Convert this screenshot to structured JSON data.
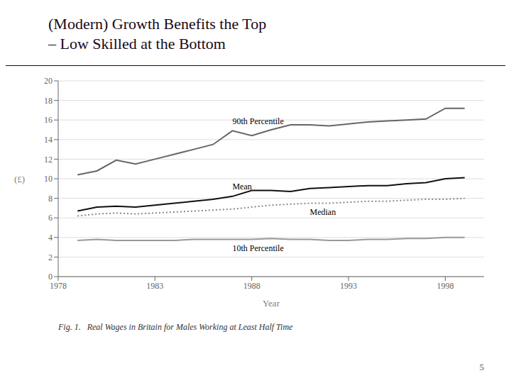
{
  "chart_data": {
    "type": "line",
    "title": "(Modern) Growth Benefits the Top",
    "subtitle": "– Low Skilled at the Bottom",
    "annotations": [
      "Fig. 1.   Real Wages in Britain for Males Working at Least Half Time",
      "5"
    ],
    "xlabel": "Year",
    "ylabel": "(£)",
    "x": [
      1979,
      1980,
      1981,
      1982,
      1983,
      1984,
      1985,
      1986,
      1987,
      1988,
      1989,
      1990,
      1991,
      1992,
      1993,
      1994,
      1995,
      1996,
      1997,
      1998,
      1999
    ],
    "series": [
      {
        "name": "90th Percentile",
        "color": "#666666",
        "line_style": "solid",
        "values": [
          10.4,
          10.8,
          11.9,
          11.5,
          12.0,
          12.5,
          13.0,
          13.5,
          14.9,
          14.4,
          15.0,
          15.5,
          15.5,
          15.4,
          15.6,
          15.8,
          15.9,
          16.0,
          16.1,
          17.2,
          17.2
        ]
      },
      {
        "name": "Mean",
        "color": "#111111",
        "line_style": "solid",
        "values": [
          6.7,
          7.1,
          7.2,
          7.1,
          7.3,
          7.5,
          7.7,
          7.9,
          8.2,
          8.8,
          8.8,
          8.7,
          9.0,
          9.1,
          9.2,
          9.3,
          9.3,
          9.5,
          9.6,
          10.0,
          10.1
        ]
      },
      {
        "name": "Median",
        "color": "#888888",
        "line_style": "dotted",
        "values": [
          6.2,
          6.4,
          6.5,
          6.4,
          6.5,
          6.6,
          6.7,
          6.8,
          6.9,
          7.1,
          7.3,
          7.4,
          7.5,
          7.5,
          7.6,
          7.7,
          7.7,
          7.8,
          7.9,
          7.9,
          8.0
        ]
      },
      {
        "name": "10th Percentile",
        "color": "#999999",
        "line_style": "solid",
        "values": [
          3.7,
          3.8,
          3.7,
          3.7,
          3.7,
          3.7,
          3.8,
          3.8,
          3.8,
          3.8,
          3.9,
          3.8,
          3.8,
          3.7,
          3.7,
          3.8,
          3.8,
          3.9,
          3.9,
          4.0,
          4.0
        ]
      }
    ],
    "xlim": [
      1978,
      2000
    ],
    "xticks": [
      1978,
      1983,
      1988,
      1993,
      1998
    ],
    "ylim": [
      0,
      20
    ],
    "yticks": [
      0,
      2,
      4,
      6,
      8,
      10,
      12,
      14,
      16,
      18,
      20
    ],
    "grid": true
  }
}
